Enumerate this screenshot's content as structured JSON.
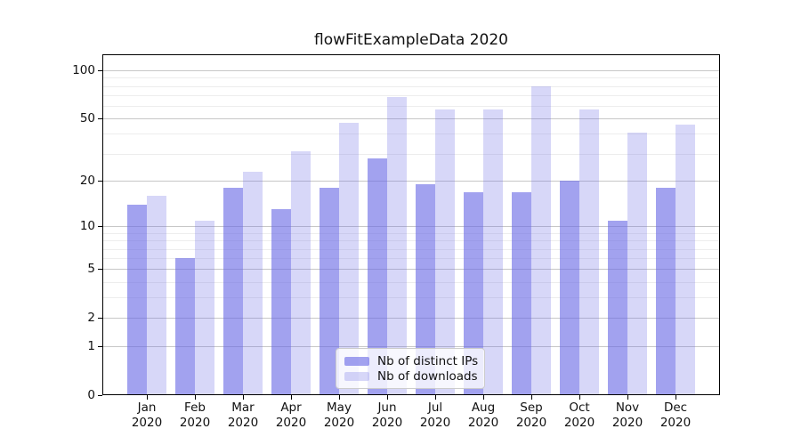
{
  "title": "flowFitExampleData 2020",
  "chart_data": {
    "type": "bar",
    "title": "flowFitExampleData 2020",
    "categories": [
      "Jan 2020",
      "Feb 2020",
      "Mar 2020",
      "Apr 2020",
      "May 2020",
      "Jun 2020",
      "Jul 2020",
      "Aug 2020",
      "Sep 2020",
      "Oct 2020",
      "Nov 2020",
      "Dec 2020"
    ],
    "series": [
      {
        "key": "distinct-ips",
        "name": "Nb of distinct IPs",
        "opacity": 0.63,
        "values": [
          14,
          6,
          18,
          13,
          18,
          28,
          19,
          17,
          17,
          20,
          11,
          18
        ]
      },
      {
        "key": "downloads",
        "name": "Nb of downloads",
        "opacity": 0.27,
        "values": [
          16,
          11,
          23,
          31,
          47,
          68,
          57,
          57,
          80,
          57,
          41,
          46
        ]
      }
    ],
    "bar_base_color": "#6b6be6",
    "yscale": "log1p",
    "ylim": [
      0,
      126
    ],
    "yticks_major": [
      100,
      50,
      20,
      10,
      5,
      2,
      1,
      0
    ],
    "yticks_minor": [
      3,
      4,
      6,
      7,
      8,
      9,
      30,
      40,
      60,
      70,
      80,
      90
    ],
    "grid": true,
    "grid_major_color": "#c7c7c7",
    "grid_minor_color": "#ededed",
    "axis_color": "#000000",
    "legend_position": "lower center"
  }
}
